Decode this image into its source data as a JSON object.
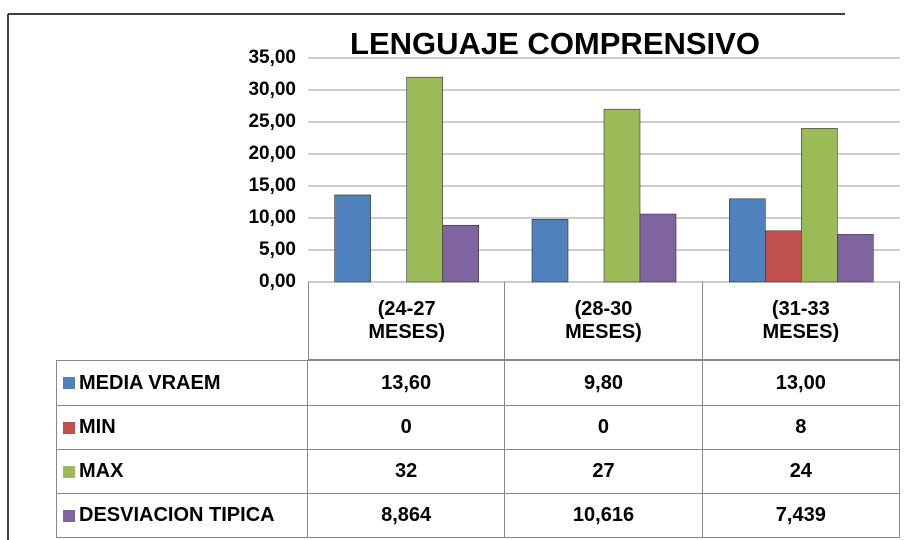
{
  "chart_data": {
    "type": "bar",
    "title": "LENGUAJE COMPRENSIVO",
    "categories": [
      "(24-27 MESES)",
      "(28-30 MESES)",
      "(31-33 MESES)"
    ],
    "series": [
      {
        "name": "MEDIA VRAEM",
        "color": "#4f81bd",
        "values": [
          13.6,
          9.8,
          13.0
        ],
        "value_labels": [
          "13,60",
          "9,80",
          "13,00"
        ]
      },
      {
        "name": "MIN",
        "color": "#c0504d",
        "values": [
          0,
          0,
          8
        ],
        "value_labels": [
          "0",
          "0",
          "8"
        ]
      },
      {
        "name": "MAX",
        "color": "#9bbb59",
        "values": [
          32,
          27,
          24
        ],
        "value_labels": [
          "32",
          "27",
          "24"
        ]
      },
      {
        "name": "DESVIACION TIPICA",
        "color": "#8064a2",
        "values": [
          8.864,
          10.616,
          7.439
        ],
        "value_labels": [
          "8,864",
          "10,616",
          "7,439"
        ]
      }
    ],
    "ylim": [
      0,
      35
    ],
    "yticks": [
      {
        "value": 0,
        "label": "0,00"
      },
      {
        "value": 5,
        "label": "5,00"
      },
      {
        "value": 10,
        "label": "10,00"
      },
      {
        "value": 15,
        "label": "15,00"
      },
      {
        "value": 20,
        "label": "20,00"
      },
      {
        "value": 25,
        "label": "25,00"
      },
      {
        "value": 30,
        "label": "30,00"
      },
      {
        "value": 35,
        "label": "35,00"
      }
    ],
    "grid": true
  }
}
